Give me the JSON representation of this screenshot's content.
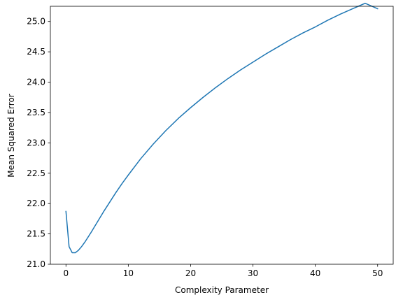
{
  "chart_data": {
    "type": "line",
    "title": "",
    "xlabel": "Complexity Parameter",
    "ylabel": "Mean Squared Error",
    "xlim": [
      -2.5,
      52.5
    ],
    "ylim": [
      21.0,
      25.25
    ],
    "xticks": [
      0,
      10,
      20,
      30,
      40,
      50
    ],
    "yticks": [
      21.0,
      21.5,
      22.0,
      22.5,
      23.0,
      23.5,
      24.0,
      24.5,
      25.0
    ],
    "grid": false,
    "legend": "none",
    "series": [
      {
        "color": "#1f77b4",
        "x": [
          0,
          0.5,
          1,
          1.5,
          2,
          2.5,
          3,
          4,
          5,
          6,
          7,
          8,
          9,
          10,
          12,
          14,
          16,
          18,
          20,
          22,
          24,
          26,
          28,
          30,
          32,
          34,
          36,
          38,
          40,
          42,
          44,
          46,
          48,
          50
        ],
        "y": [
          21.87,
          21.29,
          21.19,
          21.19,
          21.23,
          21.29,
          21.36,
          21.52,
          21.69,
          21.86,
          22.02,
          22.18,
          22.33,
          22.47,
          22.74,
          22.98,
          23.2,
          23.4,
          23.58,
          23.75,
          23.91,
          24.06,
          24.2,
          24.33,
          24.46,
          24.58,
          24.7,
          24.81,
          24.91,
          25.02,
          25.12,
          25.21,
          25.3,
          25.21
        ]
      }
    ]
  }
}
